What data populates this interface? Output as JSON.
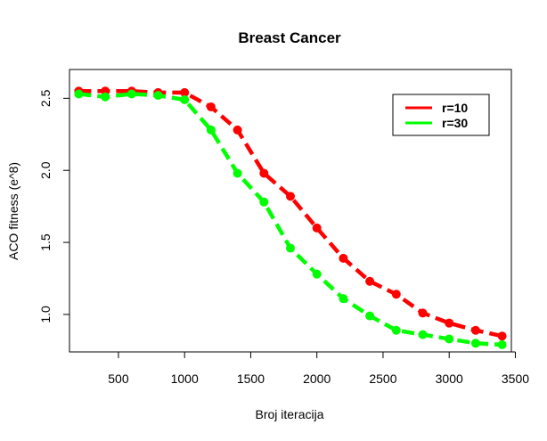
{
  "chart_data": {
    "type": "line",
    "title": "Breast Cancer",
    "xlabel": "Broj iteracija",
    "ylabel": "ACO fitness (e^8)",
    "xlim": [
      130,
      3470
    ],
    "ylim": [
      0.74,
      2.7
    ],
    "xticks": [
      500,
      1000,
      1500,
      2000,
      2500,
      3000,
      3500
    ],
    "yticks": [
      1.0,
      1.5,
      2.0,
      2.5
    ],
    "x": [
      200,
      400,
      600,
      800,
      1000,
      1200,
      1400,
      1600,
      1800,
      2000,
      2200,
      2400,
      2600,
      2800,
      3000,
      3200,
      3400
    ],
    "series": [
      {
        "name": "r=10",
        "color": "#ff0000",
        "values": [
          2.55,
          2.55,
          2.55,
          2.54,
          2.54,
          2.44,
          2.28,
          1.98,
          1.82,
          1.6,
          1.39,
          1.23,
          1.14,
          1.01,
          0.94,
          0.89,
          0.85
        ]
      },
      {
        "name": "r=30",
        "color": "#00ff00",
        "values": [
          2.53,
          2.51,
          2.53,
          2.52,
          2.49,
          2.28,
          1.98,
          1.78,
          1.46,
          1.28,
          1.11,
          0.99,
          0.89,
          0.86,
          0.83,
          0.8,
          0.79
        ]
      }
    ],
    "legend": "top-right",
    "grid": false
  }
}
